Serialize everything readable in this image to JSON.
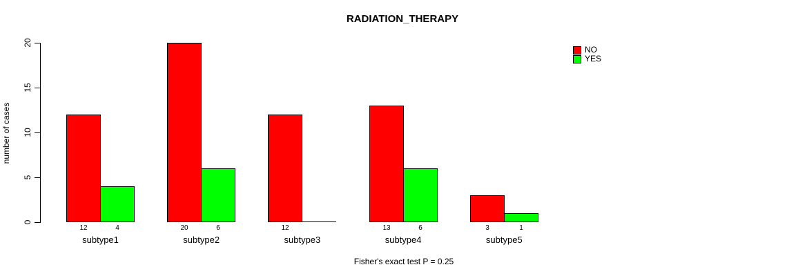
{
  "chart_data": {
    "type": "bar",
    "title": "RADIATION_THERAPY",
    "categories": [
      "subtype1",
      "subtype2",
      "subtype3",
      "subtype4",
      "subtype5"
    ],
    "series": [
      {
        "name": "NO",
        "color": "#FF0000",
        "values": [
          12,
          20,
          12,
          13,
          3
        ]
      },
      {
        "name": "YES",
        "color": "#00FF00",
        "values": [
          4,
          6,
          0,
          6,
          1
        ]
      }
    ],
    "xlabel": "",
    "ylabel": "number of cases",
    "ylim": [
      0,
      20
    ],
    "yticks": [
      0,
      5,
      10,
      15,
      20
    ],
    "bar_value_labels_visible": true,
    "zero_bars_unlabeled": true,
    "legend_position": "top-right",
    "grid": false,
    "annotation": "Fisher's exact test P = 0.25"
  }
}
